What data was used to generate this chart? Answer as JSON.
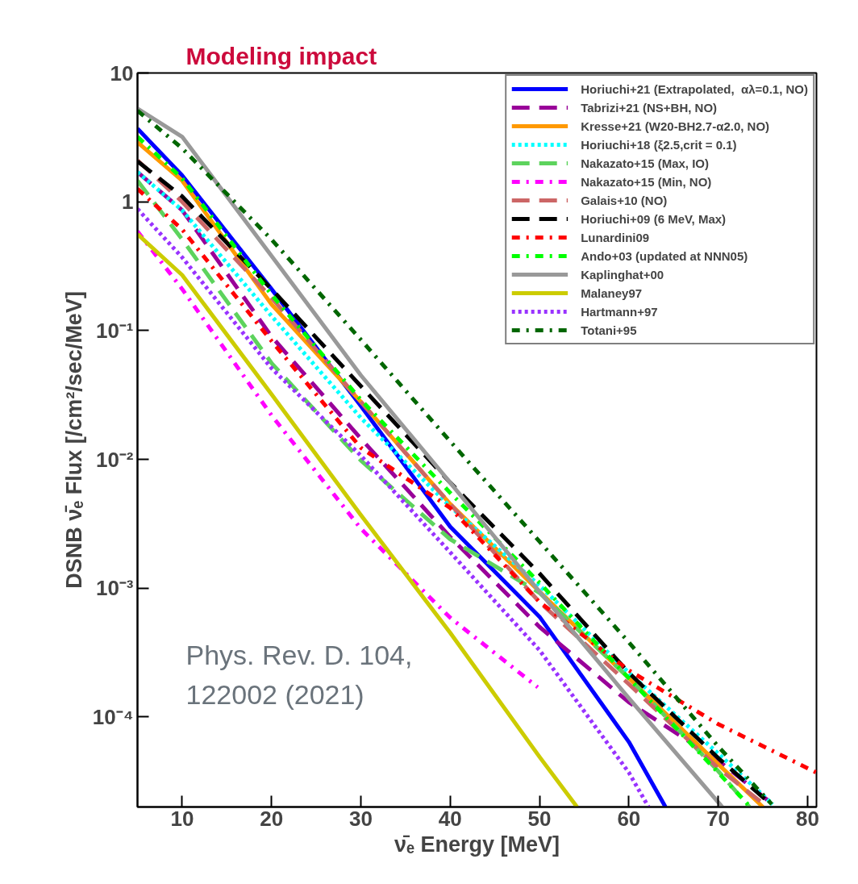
{
  "chart_data": {
    "type": "line",
    "title": "Modeling impact",
    "xlabel": "ν̄ₑ Energy [MeV]",
    "ylabel": "DSNB ν̄ₑ Flux [/cm²/sec/MeV]",
    "annotations": [
      "Phys. Rev. D. 104,\n122002 (2021)"
    ],
    "log": "y",
    "grid": false,
    "legend": "top right",
    "xlim": [
      5,
      81
    ],
    "xticks": [
      10,
      20,
      30,
      40,
      50,
      60,
      70,
      80
    ],
    "ylim": [
      2e-05,
      10
    ],
    "yticks": [
      10,
      1,
      {
        "value": 0.1,
        "label": "10⁻¹"
      },
      {
        "value": 0.01,
        "label": "10⁻²"
      },
      {
        "value": 0.001,
        "label": "10⁻³"
      },
      {
        "value": 0.0001,
        "label": "10⁻⁴"
      }
    ],
    "series": [
      {
        "name": "Horiuchi+21 (Extrapolated,  αλ=0.1, NO)",
        "color": "#0000ff",
        "line_style": "solid",
        "x": [
          5,
          10,
          20,
          30,
          40,
          50,
          60,
          64.1
        ],
        "values": [
          3.7,
          1.6,
          0.21,
          0.026,
          0.003,
          0.0006,
          6.4e-05,
          2e-05
        ]
      },
      {
        "name": "Tabrizi+21 (NS+BH, NO)",
        "color": "#990099",
        "line_style": "dashed",
        "x": [
          5,
          10,
          20,
          30,
          40,
          50,
          60,
          70,
          76.1
        ],
        "values": [
          1.7,
          0.86,
          0.09,
          0.0145,
          0.0025,
          0.0005,
          0.00013,
          4.6e-05,
          2.1e-05
        ]
      },
      {
        "name": "Kresse+21 (W20-BH2.7-α2.0, NO)",
        "color": "#ff9900",
        "line_style": "solid",
        "x": [
          5,
          10,
          20,
          30,
          40,
          50,
          60,
          70,
          75
        ],
        "values": [
          2.9,
          1.46,
          0.16,
          0.028,
          0.0045,
          0.00094,
          0.0002,
          4.3e-05,
          2e-05
        ]
      },
      {
        "name": "Horiuchi+18 (ξ2.5,crit = 0.1)",
        "color": "#00ffff",
        "line_style": "dotted",
        "x": [
          5,
          10,
          20,
          30,
          40,
          50,
          60,
          70,
          76.1
        ],
        "values": [
          1.7,
          0.86,
          0.13,
          0.021,
          0.0043,
          0.00105,
          0.00022,
          5.2e-05,
          2.1e-05
        ]
      },
      {
        "name": "Nakazato+15 (Max, IO)",
        "color": "#5dd35d",
        "line_style": "dashed",
        "x": [
          5,
          10,
          20,
          30,
          40,
          50,
          60,
          70,
          73.5
        ],
        "values": [
          1.46,
          0.51,
          0.056,
          0.0098,
          0.0024,
          0.00092,
          0.0002,
          3.8e-05,
          2e-05
        ]
      },
      {
        "name": "Nakazato+15 (Min, NO)",
        "color": "#ff00ff",
        "line_style": "dashdot",
        "x": [
          5,
          10,
          20,
          30,
          40,
          49.8
        ],
        "values": [
          0.59,
          0.21,
          0.022,
          0.0029,
          0.00059,
          0.00017
        ]
      },
      {
        "name": "Galais+10 (NO)",
        "color": "#cc6666",
        "line_style": "dashed",
        "x": [
          5,
          10,
          20,
          30,
          40,
          50,
          60,
          70,
          75.5
        ],
        "values": [
          2.1,
          1.0,
          0.18,
          0.028,
          0.0045,
          0.00078,
          0.00018,
          4e-05,
          2e-05
        ]
      },
      {
        "name": "Horiuchi+09 (6 MeV, Max)",
        "color": "#000000",
        "line_style": "dashed",
        "x": [
          5,
          10,
          20,
          30,
          40,
          50,
          60,
          70,
          75.9
        ],
        "values": [
          2.06,
          1.1,
          0.21,
          0.037,
          0.0066,
          0.0013,
          0.00022,
          4.8e-05,
          2.1e-05
        ]
      },
      {
        "name": "Lunardini09",
        "color": "#ff0000",
        "line_style": "dashdot",
        "x": [
          5,
          10,
          20,
          30,
          40,
          50,
          60,
          70,
          81
        ],
        "values": [
          1.26,
          0.61,
          0.083,
          0.0123,
          0.0042,
          0.00078,
          0.00023,
          8.8e-05,
          3.7e-05
        ]
      },
      {
        "name": "Ando+03 (updated at NNN05)",
        "color": "#00ff00",
        "line_style": "dashdot",
        "x": [
          5,
          10,
          20,
          30,
          40,
          50,
          60,
          70,
          73.6
        ],
        "values": [
          3.2,
          1.52,
          0.19,
          0.029,
          0.0055,
          0.0011,
          0.0002,
          3.7e-05,
          2e-05
        ]
      },
      {
        "name": "Kaplinghat+00",
        "color": "#999999",
        "line_style": "solid",
        "x": [
          5,
          10,
          20,
          30,
          40,
          50,
          60,
          70.45
        ],
        "values": [
          5.3,
          3.2,
          0.38,
          0.045,
          0.0066,
          0.00094,
          0.00014,
          2e-05
        ]
      },
      {
        "name": "Malaney97",
        "color": "#cccc00",
        "line_style": "solid",
        "x": [
          5,
          10,
          20,
          30,
          40,
          50,
          54.2
        ],
        "values": [
          0.56,
          0.27,
          0.032,
          0.0037,
          0.00045,
          4.9e-05,
          2e-05
        ]
      },
      {
        "name": "Hartmann+97",
        "color": "#9933ff",
        "line_style": "dotted",
        "x": [
          5,
          10,
          20,
          30,
          40,
          50,
          60,
          62.2
        ],
        "values": [
          0.88,
          0.37,
          0.051,
          0.0107,
          0.0019,
          0.00033,
          3.7e-05,
          2e-05
        ]
      },
      {
        "name": "Totani+95",
        "color": "#006600",
        "line_style": "dashdot",
        "x": [
          5,
          10,
          20,
          30,
          40,
          50,
          60,
          70,
          76
        ],
        "values": [
          5.1,
          2.6,
          0.51,
          0.085,
          0.0138,
          0.0023,
          0.00038,
          5.9e-05,
          2.1e-05
        ]
      }
    ]
  }
}
